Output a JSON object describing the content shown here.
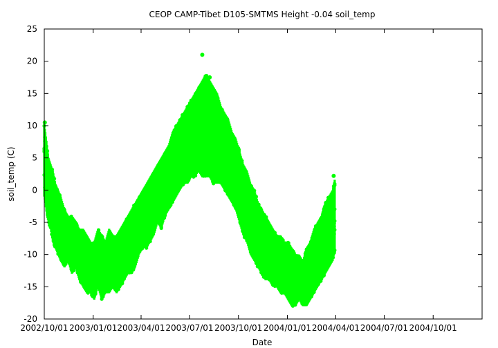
{
  "chart_data": {
    "type": "scatter",
    "title": "CEOP CAMP-Tibet D105-SMTMS Height -0.04 soil_temp",
    "xlabel": "Date",
    "ylabel": "soil_temp (C)",
    "xlim": [
      "2002-10-01",
      "2005-01-01"
    ],
    "ylim": [
      -20,
      25
    ],
    "x_ticks": [
      {
        "date": "2002-10-01",
        "label": "2002/10/01"
      },
      {
        "date": "2003-01-01",
        "label": "2003/01/01"
      },
      {
        "date": "2003-04-01",
        "label": "2003/04/01"
      },
      {
        "date": "2003-07-01",
        "label": "2003/07/01"
      },
      {
        "date": "2003-10-01",
        "label": "2003/10/01"
      },
      {
        "date": "2004-01-01",
        "label": "2004/01/01"
      },
      {
        "date": "2004-04-01",
        "label": "2004/04/01"
      },
      {
        "date": "2004-07-01",
        "label": "2004/07/01"
      },
      {
        "date": "2004-10-01",
        "label": "2004/10/01"
      }
    ],
    "y_ticks": [
      -20,
      -15,
      -10,
      -5,
      0,
      5,
      10,
      15,
      20,
      25
    ],
    "grid": false,
    "marker_color": "#00ff00",
    "series": [
      {
        "x": [
          "2002-10-01",
          "2002-10-03",
          "2002-10-06",
          "2002-10-09",
          "2002-10-13",
          "2002-10-17",
          "2002-10-22",
          "2002-10-27",
          "2002-11-01",
          "2002-11-08",
          "2002-11-15",
          "2002-11-22",
          "2002-11-29",
          "2002-12-06",
          "2002-12-13",
          "2002-12-20",
          "2002-12-27",
          "2003-01-03",
          "2003-01-10",
          "2003-01-17",
          "2003-01-24",
          "2003-01-31",
          "2003-02-07",
          "2003-02-14",
          "2003-02-21",
          "2003-02-28",
          "2003-03-07",
          "2003-03-14",
          "2003-03-21",
          "2003-03-28",
          "2003-04-04",
          "2003-04-11",
          "2003-04-18",
          "2003-04-25",
          "2003-05-02",
          "2003-05-09",
          "2003-05-16",
          "2003-05-23",
          "2003-05-30",
          "2003-06-06",
          "2003-06-13",
          "2003-06-20",
          "2003-06-27",
          "2003-07-04",
          "2003-07-11",
          "2003-07-18",
          "2003-07-25",
          "2003-08-01",
          "2003-08-08",
          "2003-08-15",
          "2003-08-22",
          "2003-08-29",
          "2003-09-05",
          "2003-09-12",
          "2003-09-19",
          "2003-09-26",
          "2003-10-03",
          "2003-10-10",
          "2003-10-17",
          "2003-10-24",
          "2003-10-31",
          "2003-11-07",
          "2003-11-14",
          "2003-11-21",
          "2003-11-28",
          "2003-12-05",
          "2003-12-12",
          "2003-12-19",
          "2003-12-26",
          "2004-01-02",
          "2004-01-09",
          "2004-01-16",
          "2004-01-23",
          "2004-01-30",
          "2004-02-06",
          "2004-02-13",
          "2004-02-20",
          "2004-02-27",
          "2004-03-05",
          "2004-03-12",
          "2004-03-19",
          "2004-03-26",
          "2004-03-31"
        ],
        "ymin": [
          -1,
          -2,
          -4,
          -5,
          -6,
          -8,
          -9,
          -10,
          -11,
          -12,
          -11,
          -13,
          -12,
          -14,
          -15,
          -16,
          -16,
          -17,
          -15,
          -17,
          -16,
          -16,
          -15,
          -16,
          -15,
          -14,
          -13,
          -13,
          -12,
          -10,
          -9,
          -9,
          -8,
          -7,
          -5,
          -6,
          -4,
          -3,
          -2,
          -1,
          0,
          1,
          1,
          2,
          2,
          3,
          2,
          2,
          2,
          1,
          1,
          1,
          0,
          -1,
          -2,
          -3,
          -5,
          -7,
          -8,
          -10,
          -11,
          -12,
          -13,
          -14,
          -14,
          -15,
          -15,
          -16,
          -16,
          -17,
          -18,
          -18,
          -17,
          -18,
          -18,
          -17,
          -16,
          -15,
          -14,
          -13,
          -12,
          -11,
          -9
        ],
        "ymax": [
          10,
          9,
          7,
          5,
          4,
          3,
          1,
          0,
          -1,
          -3,
          -4,
          -4,
          -5,
          -6,
          -6,
          -7,
          -8,
          -8,
          -6,
          -7,
          -8,
          -6,
          -7,
          -7,
          -6,
          -5,
          -4,
          -3,
          -2,
          -1,
          0,
          1,
          2,
          3,
          4,
          5,
          6,
          7,
          9,
          10,
          11,
          12,
          13,
          14,
          15,
          16,
          17,
          18,
          17,
          16,
          15,
          13,
          12,
          11,
          9,
          8,
          6,
          4,
          3,
          1,
          0,
          -2,
          -3,
          -4,
          -5,
          -6,
          -7,
          -7,
          -8,
          -8,
          -9,
          -10,
          -10,
          -11,
          -9,
          -8,
          -6,
          -5,
          -4,
          -2,
          -1,
          0,
          2
        ],
        "highlights": [
          {
            "x": "2003-07-25",
            "y": 21
          },
          {
            "x": "2003-08-08",
            "y": 17.5
          },
          {
            "x": "2002-10-02",
            "y": 10.5
          },
          {
            "x": "2004-03-28",
            "y": 2.2
          }
        ]
      }
    ]
  }
}
